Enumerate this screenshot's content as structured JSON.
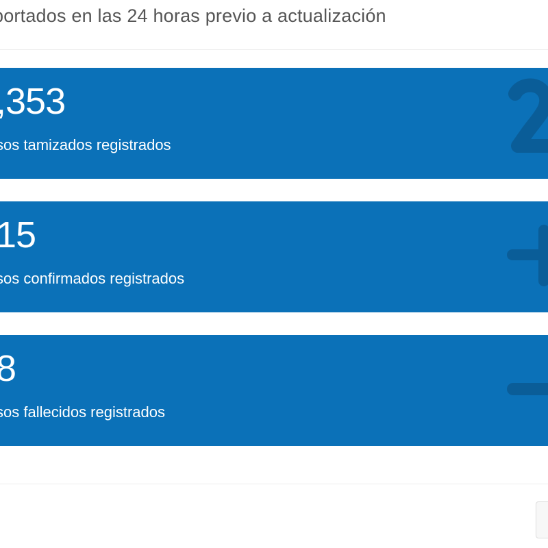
{
  "header": {
    "subtitle": "portados en las 24 horas previo a actualización"
  },
  "cards": [
    {
      "value": ",353",
      "label": "sos tamizados registrados",
      "icon": "number-icon"
    },
    {
      "value": "15",
      "label": "sos confirmados registrados",
      "icon": "plus-icon"
    },
    {
      "value": "8",
      "label": "sos fallecidos registrados",
      "icon": "minus-icon"
    }
  ],
  "colors": {
    "card_background": "#0b71b8",
    "card_icon": "#0a5d98",
    "text_on_card": "#ffffff",
    "subtitle_text": "#555555"
  }
}
